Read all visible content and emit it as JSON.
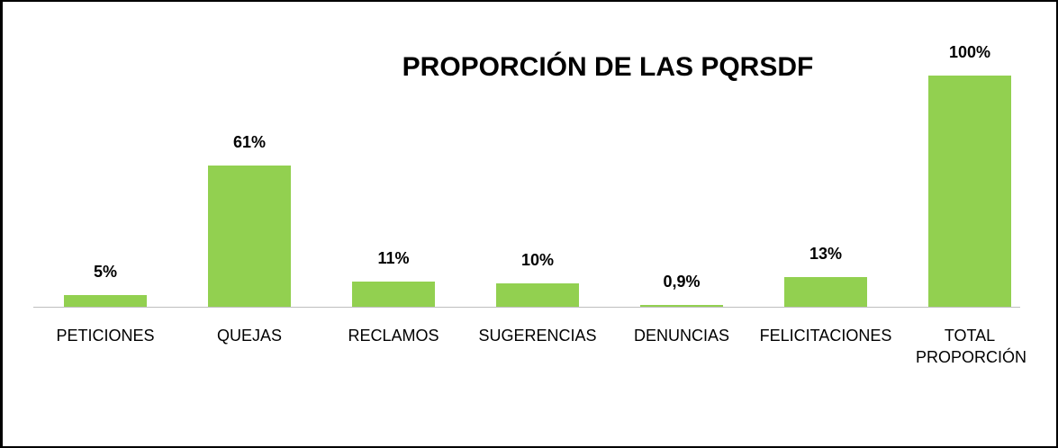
{
  "chart_data": {
    "type": "bar",
    "title": "PROPORCIÓN DE LAS PQRSDF",
    "categories": [
      "PETICIONES",
      "QUEJAS",
      "RECLAMOS",
      "SUGERENCIAS",
      "DENUNCIAS",
      "FELICITACIONES",
      "TOTAL PROPORCIÓN"
    ],
    "values": [
      5,
      61,
      11,
      10,
      0.9,
      13,
      100
    ],
    "value_labels": [
      "5%",
      "61%",
      "11%",
      "10%",
      "0,9%",
      "13%",
      "100%"
    ],
    "color": "#92d050"
  }
}
